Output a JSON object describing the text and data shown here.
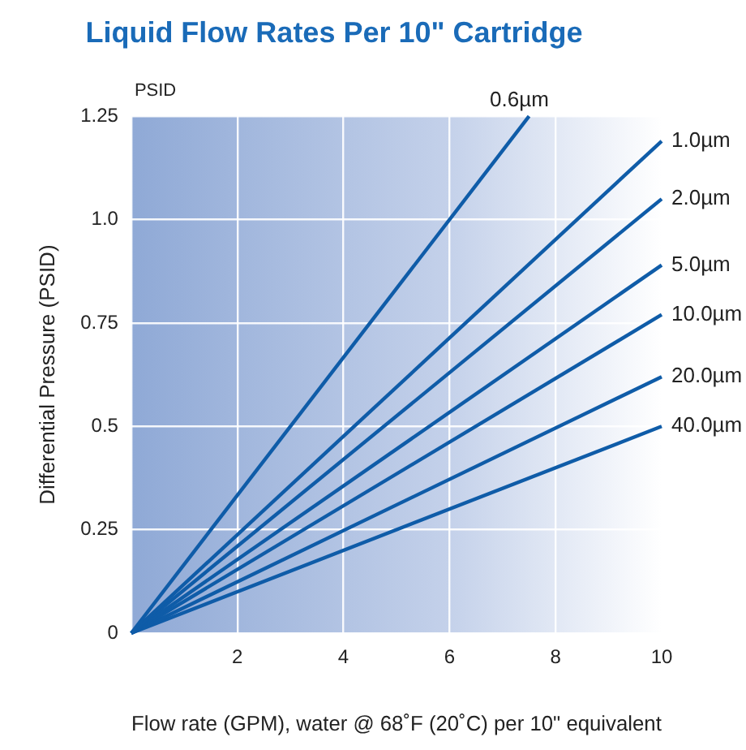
{
  "chart_data": {
    "type": "line",
    "title": "Liquid Flow Rates Per 10\" Cartridge",
    "xlabel": "Flow rate (GPM), water @ 68˚F (20˚C) per 10\" equivalent",
    "ylabel": "Differential Pressure (PSID)",
    "annotations": [
      "PSID"
    ],
    "xlim": [
      0,
      10
    ],
    "xticks": [
      {
        "value": 0,
        "label": null
      },
      2,
      4,
      6,
      8,
      10
    ],
    "ylim": [
      0,
      1.25
    ],
    "yticks": [
      0,
      0.25,
      0.5,
      0.75,
      {
        "value": 1,
        "label": "1.0"
      },
      1.25
    ],
    "grid": true,
    "legend": false,
    "marker": "none",
    "line_style": "solid",
    "series": [
      {
        "name": "0.6µm",
        "color": "#0f5ca8",
        "x": [
          0,
          7.5
        ],
        "values": [
          0,
          1.25
        ]
      },
      {
        "name": "1.0µm",
        "color": "#0f5ca8",
        "x": [
          0,
          10
        ],
        "values": [
          0,
          1.19
        ]
      },
      {
        "name": "2.0µm",
        "color": "#0f5ca8",
        "x": [
          0,
          10
        ],
        "values": [
          0,
          1.05
        ]
      },
      {
        "name": "5.0µm",
        "color": "#0f5ca8",
        "x": [
          0,
          10
        ],
        "values": [
          0,
          0.89
        ]
      },
      {
        "name": "10.0µm",
        "color": "#0f5ca8",
        "x": [
          0,
          10
        ],
        "values": [
          0,
          0.77
        ]
      },
      {
        "name": "20.0µm",
        "color": "#0f5ca8",
        "x": [
          0,
          10
        ],
        "values": [
          0,
          0.62
        ]
      },
      {
        "name": "40.0µm",
        "color": "#0f5ca8",
        "x": [
          0,
          10
        ],
        "values": [
          0,
          0.5
        ]
      }
    ]
  }
}
